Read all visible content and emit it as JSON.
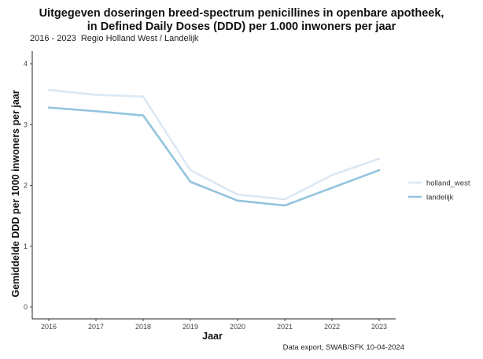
{
  "chart_data": {
    "type": "line",
    "title_line1": "Uitgegeven doseringen breed-spectrum penicillines in openbare apotheek,",
    "title_line2": "in Defined Daily Doses (DDD) per 1.000 inwoners per jaar",
    "subtitle": "2016 - 2023  Regio Holland West / Landelijk",
    "xlabel": "Jaar",
    "ylabel": "Gemiddelde DDD per 1000 inwoners per jaar",
    "x": [
      2016,
      2017,
      2018,
      2019,
      2020,
      2021,
      2022,
      2023
    ],
    "ylim": [
      0,
      4
    ],
    "yticks": [
      0,
      1,
      2,
      3,
      4
    ],
    "grid": false,
    "legend_position": "right",
    "series": [
      {
        "name": "holland_west",
        "color": "#dce8f3",
        "values": [
          3.57,
          3.49,
          3.46,
          2.25,
          1.85,
          1.77,
          2.17,
          2.44
        ]
      },
      {
        "name": "landelijk",
        "color": "#93c4de",
        "values": [
          3.28,
          3.22,
          3.15,
          2.06,
          1.75,
          1.67,
          1.96,
          2.25
        ]
      }
    ],
    "caption": "Data export, SWAB/SFK 10-04-2024"
  }
}
